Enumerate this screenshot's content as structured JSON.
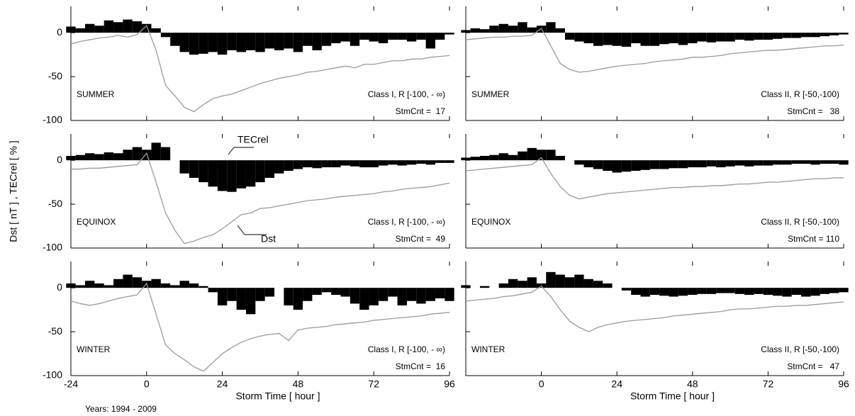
{
  "y_label": "Dst [ nT ] , TECrel [ % ]",
  "footnote": "Years: 1994 - 2009",
  "chart_data": [
    {
      "type": "bar_line",
      "season": "SUMMER",
      "class": "Class I, R [-100, - ∞)",
      "count": "StmCnt =  17",
      "x": [
        -24,
        -21,
        -18,
        -15,
        -12,
        -9,
        -6,
        -3,
        0,
        3,
        6,
        9,
        12,
        15,
        18,
        21,
        24,
        27,
        30,
        33,
        36,
        39,
        42,
        45,
        48,
        51,
        54,
        57,
        60,
        63,
        66,
        69,
        72,
        75,
        78,
        81,
        84,
        87,
        90,
        93,
        96
      ],
      "xlim": [
        -24,
        96
      ],
      "ylim": [
        -100,
        30
      ],
      "yticks": [
        -100,
        -50,
        0
      ],
      "series": [
        {
          "name": "TECrel",
          "color": "#000000",
          "values": [
            7,
            5,
            10,
            8,
            14,
            12,
            15,
            13,
            10,
            5,
            -5,
            -15,
            -22,
            -25,
            -24,
            -22,
            -25,
            -20,
            -22,
            -20,
            -22,
            -18,
            -20,
            -18,
            -22,
            -15,
            -20,
            -15,
            -12,
            -10,
            -15,
            -8,
            -10,
            -12,
            -8,
            -8,
            -10,
            -8,
            -18,
            -8,
            -2
          ]
        },
        {
          "name": "Dst",
          "color": "#9a9a9a",
          "values": [
            -13,
            -10,
            -8,
            -6,
            -5,
            -3,
            -5,
            -2,
            8,
            -20,
            -60,
            -72,
            -85,
            -90,
            -82,
            -75,
            -72,
            -70,
            -66,
            -62,
            -58,
            -55,
            -52,
            -50,
            -48,
            -45,
            -44,
            -42,
            -40,
            -38,
            -40,
            -36,
            -36,
            -34,
            -32,
            -32,
            -30,
            -30,
            -28,
            -27,
            -26
          ]
        }
      ]
    },
    {
      "type": "bar_line",
      "season": "SUMMER",
      "class": "Class II, R [-50,-100)",
      "count": "StmCnt =   38",
      "x": [
        -24,
        -21,
        -18,
        -15,
        -12,
        -9,
        -6,
        -3,
        0,
        3,
        6,
        9,
        12,
        15,
        18,
        21,
        24,
        27,
        30,
        33,
        36,
        39,
        42,
        45,
        48,
        51,
        54,
        57,
        60,
        63,
        66,
        69,
        72,
        75,
        78,
        81,
        84,
        87,
        90,
        93,
        96
      ],
      "xlim": [
        -24,
        96
      ],
      "ylim": [
        -100,
        30
      ],
      "series": [
        {
          "name": "TECrel",
          "color": "#000000",
          "values": [
            3,
            5,
            4,
            8,
            10,
            8,
            12,
            6,
            8,
            12,
            5,
            -8,
            -10,
            -12,
            -15,
            -14,
            -15,
            -16,
            -12,
            -15,
            -15,
            -13,
            -12,
            -14,
            -12,
            -10,
            -11,
            -10,
            -10,
            -8,
            -9,
            -8,
            -8,
            -7,
            -6,
            -6,
            -5,
            -5,
            -4,
            -3,
            -2
          ]
        },
        {
          "name": "Dst",
          "color": "#9a9a9a",
          "values": [
            -8,
            -7,
            -6,
            -5,
            -5,
            -4,
            -4,
            -3,
            5,
            -15,
            -35,
            -42,
            -45,
            -44,
            -42,
            -40,
            -38,
            -37,
            -36,
            -35,
            -33,
            -32,
            -31,
            -30,
            -28,
            -28,
            -27,
            -26,
            -24,
            -23,
            -22,
            -21,
            -20,
            -20,
            -19,
            -18,
            -17,
            -16,
            -15,
            -15,
            -14
          ]
        }
      ]
    },
    {
      "type": "bar_line",
      "season": "EQUINOX",
      "class": "Class I, R [-100, - ∞)",
      "count": "StmCnt =  49",
      "annotations": [
        "TECrel",
        "Dst"
      ],
      "x": [
        -24,
        -21,
        -18,
        -15,
        -12,
        -9,
        -6,
        -3,
        0,
        3,
        6,
        9,
        12,
        15,
        18,
        21,
        24,
        27,
        30,
        33,
        36,
        39,
        42,
        45,
        48,
        51,
        54,
        57,
        60,
        63,
        66,
        69,
        72,
        75,
        78,
        81,
        84,
        87,
        90,
        93,
        96
      ],
      "xlim": [
        -24,
        96
      ],
      "ylim": [
        -100,
        30
      ],
      "yticks": [
        -100,
        -50,
        0
      ],
      "series": [
        {
          "name": "TECrel",
          "color": "#000000",
          "values": [
            5,
            6,
            8,
            7,
            9,
            8,
            12,
            15,
            12,
            20,
            15,
            0,
            -15,
            -20,
            -25,
            -30,
            -35,
            -36,
            -32,
            -30,
            -25,
            -20,
            -15,
            -12,
            -10,
            -8,
            -9,
            -8,
            -8,
            -6,
            -7,
            -8,
            -8,
            -6,
            -5,
            -6,
            -5,
            -4,
            -5,
            -3,
            -3
          ]
        },
        {
          "name": "Dst",
          "color": "#9a9a9a",
          "values": [
            -10,
            -10,
            -9,
            -9,
            -8,
            -7,
            -6,
            -5,
            8,
            -25,
            -60,
            -80,
            -95,
            -92,
            -88,
            -85,
            -78,
            -70,
            -62,
            -60,
            -55,
            -54,
            -52,
            -50,
            -48,
            -46,
            -45,
            -44,
            -42,
            -41,
            -40,
            -39,
            -38,
            -36,
            -35,
            -33,
            -32,
            -31,
            -30,
            -28,
            -26
          ]
        }
      ]
    },
    {
      "type": "bar_line",
      "season": "EQUINOX",
      "class": "Class II, R [-50,-100)",
      "count": "StmCnt = 110",
      "x": [
        -24,
        -21,
        -18,
        -15,
        -12,
        -9,
        -6,
        -3,
        0,
        3,
        6,
        9,
        12,
        15,
        18,
        21,
        24,
        27,
        30,
        33,
        36,
        39,
        42,
        45,
        48,
        51,
        54,
        57,
        60,
        63,
        66,
        69,
        72,
        75,
        78,
        81,
        84,
        87,
        90,
        93,
        96
      ],
      "xlim": [
        -24,
        96
      ],
      "ylim": [
        -100,
        30
      ],
      "series": [
        {
          "name": "TECrel",
          "color": "#000000",
          "values": [
            3,
            4,
            5,
            6,
            8,
            6,
            10,
            14,
            12,
            12,
            5,
            0,
            -5,
            -8,
            -10,
            -12,
            -14,
            -13,
            -12,
            -11,
            -10,
            -10,
            -9,
            -9,
            -8,
            -8,
            -7,
            -8,
            -7,
            -6,
            -7,
            -6,
            -6,
            -5,
            -5,
            -4,
            -4,
            -5,
            -4,
            -4,
            -5
          ]
        },
        {
          "name": "Dst",
          "color": "#9a9a9a",
          "values": [
            -12,
            -11,
            -10,
            -9,
            -8,
            -7,
            -6,
            -5,
            3,
            -15,
            -30,
            -40,
            -44,
            -42,
            -40,
            -38,
            -37,
            -36,
            -35,
            -34,
            -33,
            -32,
            -31,
            -31,
            -30,
            -30,
            -29,
            -29,
            -28,
            -27,
            -27,
            -26,
            -25,
            -25,
            -24,
            -23,
            -22,
            -21,
            -21,
            -20,
            -20
          ]
        }
      ]
    },
    {
      "type": "bar_line",
      "season": "WINTER",
      "class": "Class I, R [-100, - ∞)",
      "count": "StmCnt =  16",
      "xlabel": "Storm Time [ hour ]",
      "x": [
        -24,
        -21,
        -18,
        -15,
        -12,
        -9,
        -6,
        -3,
        0,
        3,
        6,
        9,
        12,
        15,
        18,
        21,
        24,
        27,
        30,
        33,
        36,
        39,
        42,
        45,
        48,
        51,
        54,
        57,
        60,
        63,
        66,
        69,
        72,
        75,
        78,
        81,
        84,
        87,
        90,
        93,
        96
      ],
      "xlim": [
        -24,
        96
      ],
      "xticks": [
        -24,
        0,
        24,
        48,
        72,
        96
      ],
      "ylim": [
        -100,
        30
      ],
      "yticks": [
        -100,
        -50,
        0
      ],
      "series": [
        {
          "name": "TECrel",
          "color": "#000000",
          "values": [
            5,
            3,
            8,
            5,
            3,
            10,
            15,
            12,
            8,
            10,
            5,
            3,
            8,
            5,
            2,
            -5,
            -20,
            -15,
            -25,
            -30,
            -15,
            -10,
            0,
            -20,
            -25,
            -15,
            -8,
            -5,
            -8,
            -10,
            -18,
            -25,
            -20,
            -15,
            -10,
            -20,
            -15,
            -18,
            -15,
            -12,
            -15
          ]
        },
        {
          "name": "Dst",
          "color": "#9a9a9a",
          "values": [
            -15,
            -18,
            -20,
            -18,
            -15,
            -12,
            -10,
            -8,
            5,
            -30,
            -65,
            -75,
            -82,
            -90,
            -95,
            -85,
            -75,
            -68,
            -62,
            -58,
            -55,
            -53,
            -52,
            -60,
            -48,
            -46,
            -45,
            -44,
            -42,
            -41,
            -40,
            -39,
            -37,
            -36,
            -35,
            -34,
            -33,
            -32,
            -30,
            -29,
            -28
          ]
        }
      ]
    },
    {
      "type": "bar_line",
      "season": "WINTER",
      "class": "Class II, R [-50,-100)",
      "count": "StmCnt =   47",
      "xlabel": "Storm Time [ hour ]",
      "x": [
        -24,
        -21,
        -18,
        -15,
        -12,
        -9,
        -6,
        -3,
        0,
        3,
        6,
        9,
        12,
        15,
        18,
        21,
        24,
        27,
        30,
        33,
        36,
        39,
        42,
        45,
        48,
        51,
        54,
        57,
        60,
        63,
        66,
        69,
        72,
        75,
        78,
        81,
        84,
        87,
        90,
        93,
        96
      ],
      "xlim": [
        -24,
        96
      ],
      "xticks": [
        0,
        24,
        48,
        72,
        96
      ],
      "ylim": [
        -100,
        30
      ],
      "series": [
        {
          "name": "TECrel",
          "color": "#000000",
          "values": [
            3,
            0,
            2,
            0,
            5,
            10,
            8,
            12,
            5,
            18,
            15,
            12,
            15,
            10,
            8,
            5,
            0,
            -3,
            -8,
            -10,
            -8,
            -9,
            -10,
            -9,
            -8,
            -7,
            -7,
            -6,
            -6,
            -7,
            -8,
            -7,
            -8,
            -9,
            -10,
            -8,
            -10,
            -9,
            -7,
            -6,
            -5
          ]
        },
        {
          "name": "Dst",
          "color": "#9a9a9a",
          "values": [
            -15,
            -14,
            -13,
            -12,
            -10,
            -9,
            -7,
            -5,
            2,
            -10,
            -25,
            -38,
            -45,
            -50,
            -45,
            -42,
            -40,
            -38,
            -37,
            -36,
            -35,
            -34,
            -32,
            -31,
            -30,
            -29,
            -28,
            -27,
            -25,
            -24,
            -24,
            -23,
            -22,
            -21,
            -21,
            -20,
            -20,
            -19,
            -18,
            -17,
            -16
          ]
        }
      ]
    }
  ]
}
